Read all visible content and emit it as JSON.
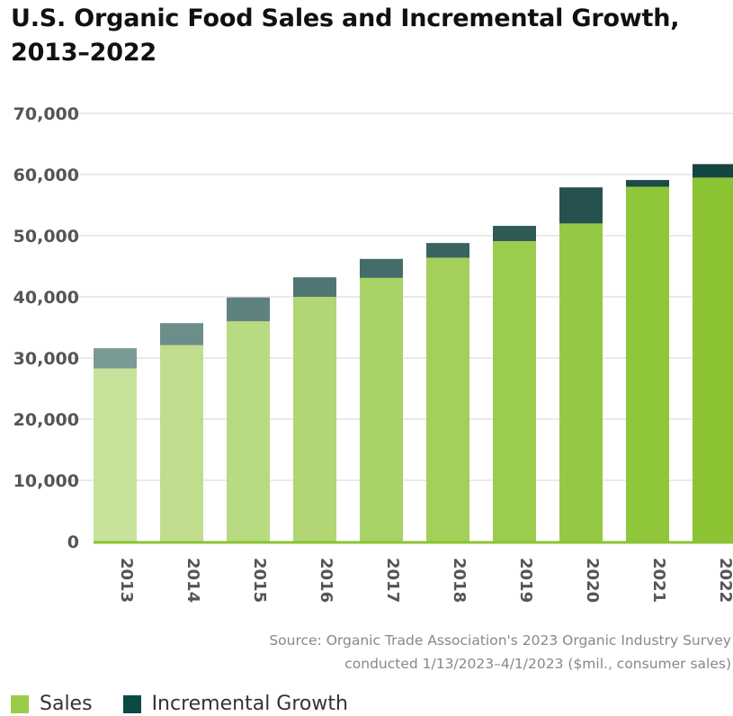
{
  "chart_data": {
    "type": "bar",
    "stacked": true,
    "title": "U.S. Organic Food Sales and Incremental Growth, 2013–2022",
    "categories": [
      "2013",
      "2014",
      "2015",
      "2016",
      "2017",
      "2018",
      "2019",
      "2020",
      "2021",
      "2022"
    ],
    "series": [
      {
        "name": "Sales",
        "values": [
          28300,
          32100,
          36000,
          40000,
          43100,
          46400,
          49100,
          52000,
          58000,
          59500
        ]
      },
      {
        "name": "Incremental Growth",
        "values": [
          3300,
          3600,
          3900,
          3200,
          3100,
          2400,
          2500,
          5900,
          1100,
          2200
        ]
      }
    ],
    "ylim": [
      0,
      70000
    ],
    "yticks": [
      "0",
      "10,000",
      "20,000",
      "30,000",
      "40,000",
      "50,000",
      "60,000",
      "70,000"
    ],
    "ytick_values": [
      0,
      10000,
      20000,
      30000,
      40000,
      50000,
      60000,
      70000
    ],
    "grid": true,
    "legend_position": "bottom-left",
    "sales_colors": [
      "#c7e29b",
      "#bfdd8c",
      "#b8da80",
      "#b1d673",
      "#aad367",
      "#a3cf5a",
      "#9ccc4e",
      "#96c943",
      "#90c639",
      "#8bc332"
    ],
    "growth_colors": [
      "#7a9a96",
      "#6c8e8a",
      "#5e827e",
      "#517774",
      "#446c69",
      "#3a635f",
      "#2f5a56",
      "#25524f",
      "#1c4a47",
      "#134541"
    ],
    "source": "Source: Organic Trade Association's 2023 Organic Industry Survey",
    "source_line2": "conducted 1/13/2023–4/1/2023 ($mil., consumer sales)",
    "legend": [
      {
        "label": "Sales",
        "color": "#9bcb4a"
      },
      {
        "label": "Incremental Growth",
        "color": "#0b4a44"
      }
    ]
  }
}
